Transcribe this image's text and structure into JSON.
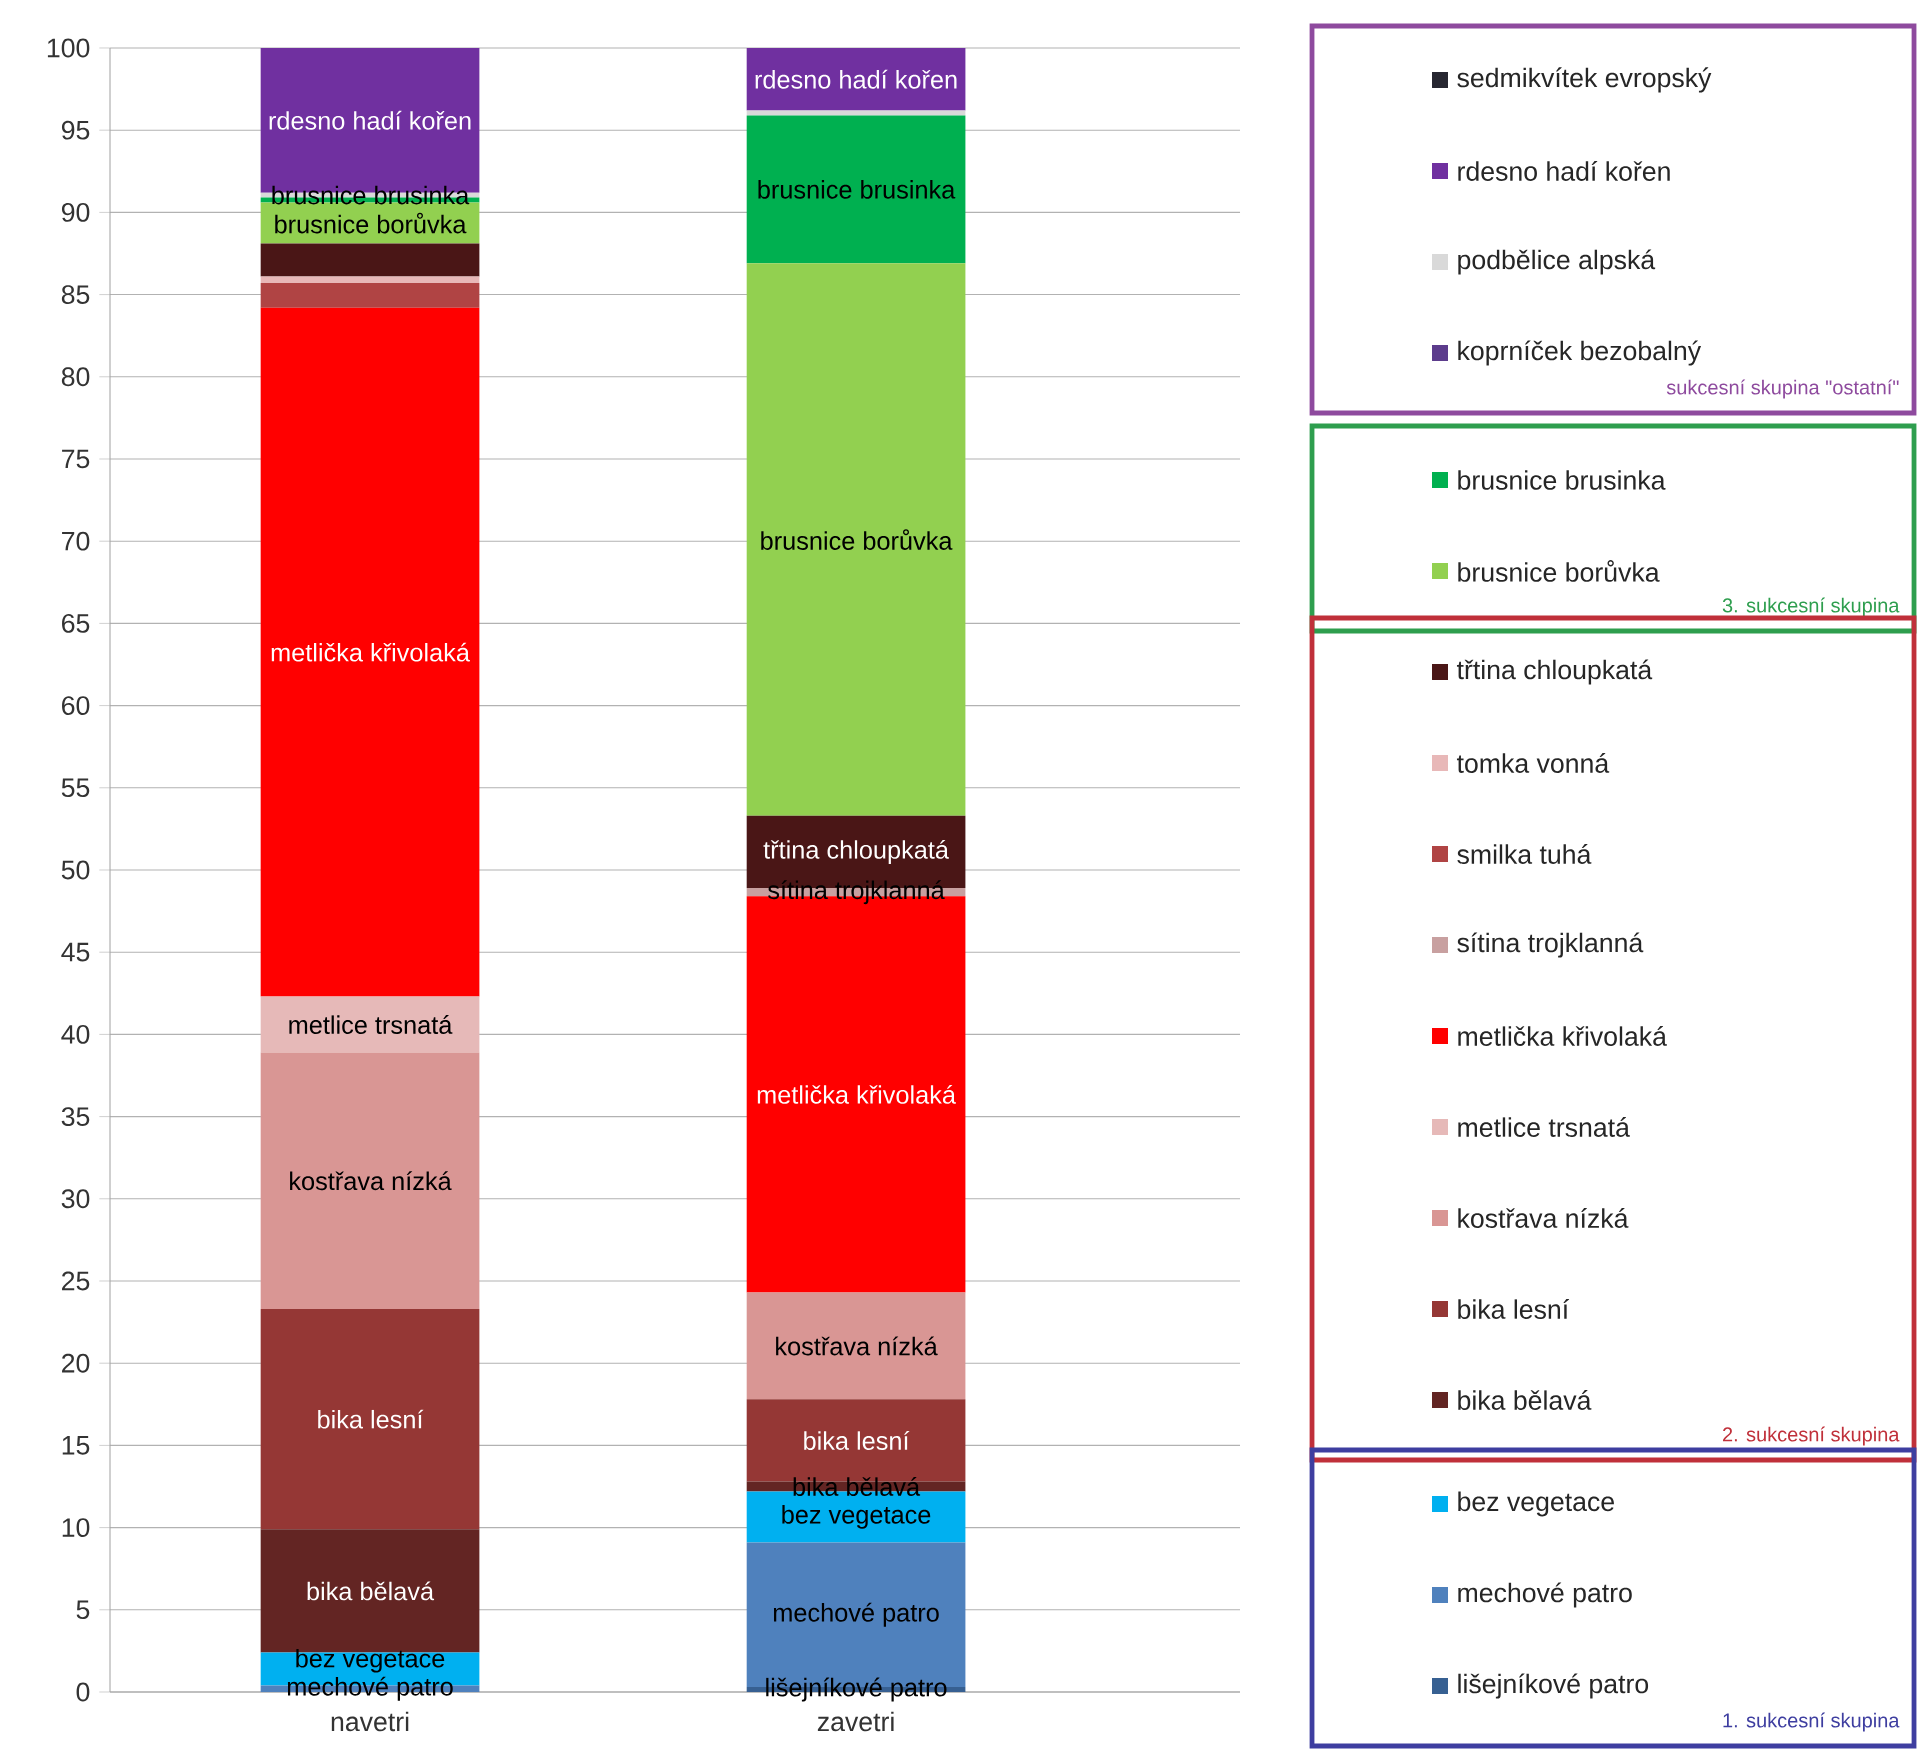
{
  "chart_data": {
    "type": "bar",
    "stacked": true,
    "categories": [
      "navetri",
      "zavetri"
    ],
    "ylim": [
      0,
      100
    ],
    "yticks": [
      0,
      5,
      10,
      15,
      20,
      25,
      30,
      35,
      40,
      45,
      50,
      55,
      60,
      65,
      70,
      75,
      80,
      85,
      90,
      95,
      100
    ],
    "grid": "y",
    "legend": "right",
    "series": [
      {
        "name": "lišejníkové patro",
        "color": "#376092",
        "values": [
          0,
          0.3
        ],
        "value_labels": [
          null,
          "lišejníkové patro"
        ]
      },
      {
        "name": "mechové patro",
        "color": "#4f81bd",
        "values": [
          0.4,
          8.8
        ],
        "value_labels": [
          "mechové patro",
          "mechové patro"
        ]
      },
      {
        "name": "bez vegetace",
        "color": "#00b0f0",
        "values": [
          2.0,
          3.1
        ],
        "value_labels": [
          "bez vegetace",
          "bez vegetace"
        ]
      },
      {
        "name": "bika bělavá",
        "color": "#632523",
        "values": [
          7.5,
          0.6
        ],
        "value_labels": [
          "bika bělavá",
          "bika bělavá"
        ]
      },
      {
        "name": "bika lesní",
        "color": "#953735",
        "values": [
          13.4,
          5.0
        ],
        "value_labels": [
          "bika lesní",
          "bika lesní"
        ]
      },
      {
        "name": "kostřava nízká",
        "color": "#d99694",
        "values": [
          15.6,
          6.5
        ],
        "value_labels": [
          "kostřava nízká",
          "kostřava nízká"
        ]
      },
      {
        "name": "metlice trsnatá",
        "color": "#e6b9b8",
        "values": [
          3.4,
          0
        ],
        "value_labels": [
          "metlice trsnatá",
          null
        ]
      },
      {
        "name": "metlička křivolaká",
        "color": "#ff0000",
        "values": [
          41.9,
          24.1
        ],
        "value_labels": [
          "metlička křivolaká",
          "metlička křivolaká"
        ]
      },
      {
        "name": "sítina trojklanná",
        "color": "#c8a0a0",
        "values": [
          0,
          0.5
        ],
        "value_labels": [
          null,
          "sítina trojklanná"
        ]
      },
      {
        "name": "smilka tuhá",
        "color": "#b04444",
        "values": [
          1.5,
          0
        ],
        "value_labels": [
          null,
          null
        ]
      },
      {
        "name": "tomka vonná",
        "color": "#e8b8b8",
        "values": [
          0.4,
          0
        ],
        "value_labels": [
          null,
          null
        ]
      },
      {
        "name": "třtina chloupkatá",
        "color": "#4a1616",
        "values": [
          2.0,
          4.4
        ],
        "value_labels": [
          null,
          "třtina chloupkatá"
        ]
      },
      {
        "name": "brusnice borůvka",
        "color": "#92d050",
        "values": [
          2.5,
          33.6
        ],
        "value_labels": [
          "brusnice borůvka",
          "brusnice borůvka"
        ]
      },
      {
        "name": "brusnice brusinka",
        "color": "#00b050",
        "values": [
          0.3,
          9.0
        ],
        "value_labels": [
          "brusnice brusinka",
          "brusnice brusinka"
        ]
      },
      {
        "name": "koprníček bezobalný",
        "color": "#5c3c8c",
        "values": [
          0,
          0
        ],
        "value_labels": [
          null,
          null
        ]
      },
      {
        "name": "podbělice alpská",
        "color": "#d9d9d9",
        "values": [
          0.3,
          0.3
        ],
        "value_labels": [
          null,
          null
        ]
      },
      {
        "name": "rdesno hadí kořen",
        "color": "#7030a0",
        "values": [
          8.8,
          3.8
        ],
        "value_labels": [
          "rdesno hadí kořen",
          "rdesno hadí kořen"
        ]
      },
      {
        "name": "sedmikvítek evropský",
        "color": "#262630",
        "values": [
          0,
          0
        ],
        "value_labels": [
          null,
          null
        ]
      }
    ],
    "annotations": [
      "sukcesní skupina \"ostatní\"",
      "3. sukcesní skupina",
      "2. sukcesní skupina",
      "1. sukcesní skupina"
    ]
  }
}
